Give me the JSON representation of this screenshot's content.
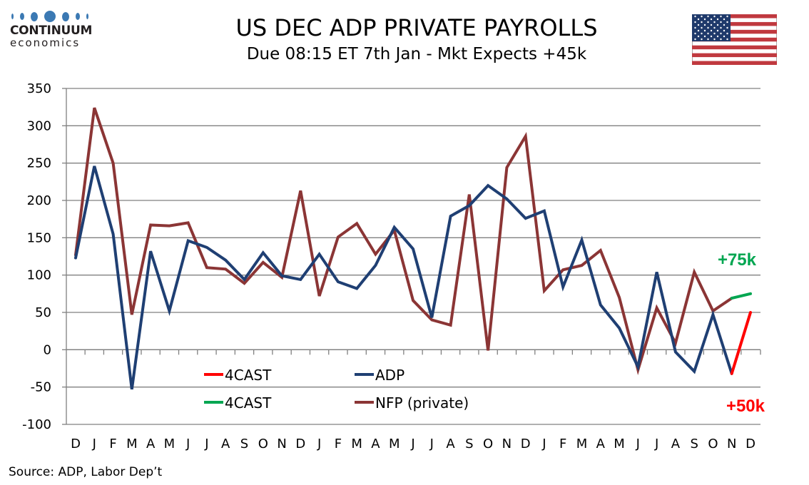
{
  "logo": {
    "name": "CONTINUUM",
    "sub": "economics"
  },
  "header": {
    "title": "US DEC ADP PRIVATE PAYROLLS",
    "subtitle": "Due 08:15 ET 7th Jan - Mkt Expects +45k"
  },
  "flag_icon": "us-flag-icon",
  "source": "Source: ADP, Labor Dep’t",
  "colors": {
    "adp": "#1f3f73",
    "nfp": "#8b3535",
    "forecast_red": "#ff0000",
    "forecast_green": "#00a651",
    "grid": "#808080",
    "logo_blue": "#3b79b3"
  },
  "chart_data": {
    "type": "line",
    "title": "US DEC ADP PRIVATE PAYROLLS",
    "subtitle": "Due 08:15 ET 7th Jan - Mkt Expects +45k",
    "xlabel": "",
    "ylabel": "",
    "ylim": [
      -100,
      350
    ],
    "yticks": [
      350,
      300,
      250,
      200,
      150,
      100,
      50,
      0,
      -50,
      -100
    ],
    "grid": true,
    "categories": [
      "D",
      "J",
      "F",
      "M",
      "A",
      "M",
      "J",
      "J",
      "A",
      "S",
      "O",
      "N",
      "D",
      "J",
      "F",
      "M",
      "A",
      "M",
      "J",
      "J",
      "A",
      "S",
      "O",
      "N",
      "D",
      "J",
      "F",
      "M",
      "A",
      "M",
      "J",
      "J",
      "A",
      "S",
      "O",
      "N",
      "D"
    ],
    "series": [
      {
        "name": "ADP",
        "color": "#1f3f73",
        "values": [
          123,
          246,
          155,
          -53,
          132,
          52,
          146,
          137,
          120,
          94,
          130,
          99,
          94,
          128,
          91,
          82,
          113,
          164,
          135,
          43,
          179,
          193,
          220,
          202,
          176,
          186,
          84,
          147,
          60,
          29,
          -23,
          104,
          -3,
          -29,
          47,
          -32,
          null
        ]
      },
      {
        "name": "NFP (private)",
        "color": "#8b3535",
        "values": [
          127,
          324,
          250,
          47,
          167,
          166,
          170,
          110,
          108,
          89,
          117,
          97,
          213,
          72,
          151,
          169,
          128,
          160,
          66,
          40,
          33,
          208,
          -1,
          244,
          286,
          79,
          107,
          113,
          133,
          70,
          -27,
          56,
          9,
          104,
          52,
          69,
          null
        ]
      },
      {
        "name": "4CAST",
        "color": "#ff0000",
        "linked_to": "ADP",
        "values_from_index": 35,
        "values": [
          -32,
          50
        ]
      },
      {
        "name": "4CAST",
        "color": "#00a651",
        "linked_to": "NFP (private)",
        "values_from_index": 35,
        "values": [
          69,
          75
        ]
      }
    ],
    "legend": {
      "placement": "bottom-center",
      "entries": [
        {
          "label": "4CAST",
          "color": "#ff0000"
        },
        {
          "label": "ADP",
          "color": "#1f3f73"
        },
        {
          "label": "4CAST",
          "color": "#00a651"
        },
        {
          "label": "NFP (private)",
          "color": "#8b3535"
        }
      ]
    },
    "annotations": [
      {
        "text": "+75k",
        "color": "#00a651",
        "near": "NFP forecast (Dec)"
      },
      {
        "text": "+50k",
        "color": "#ff0000",
        "near": "ADP forecast (Dec)"
      }
    ]
  }
}
